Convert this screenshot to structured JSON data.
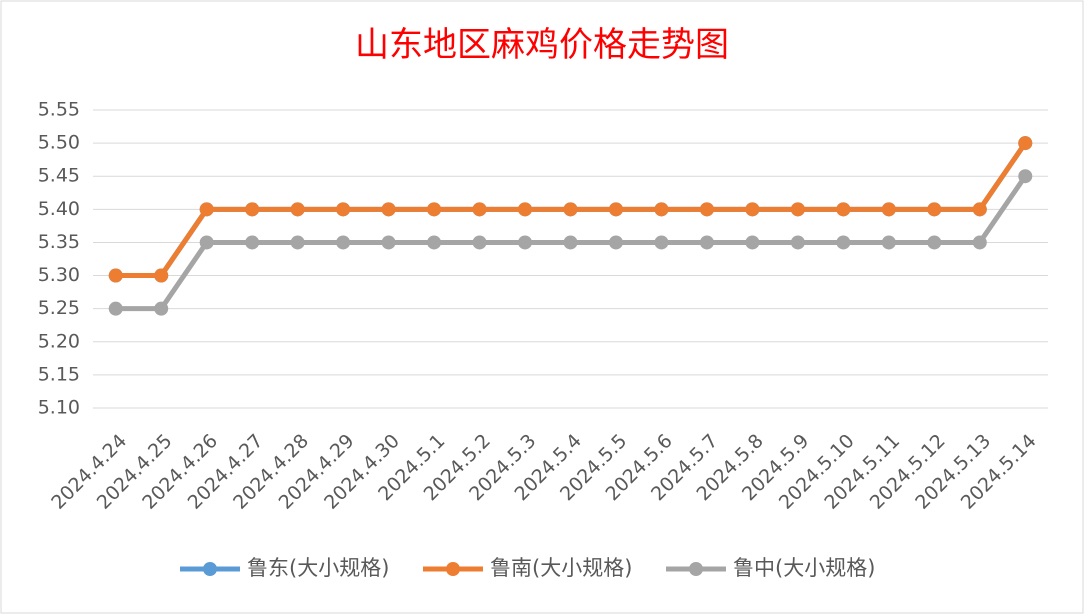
{
  "chart_data": {
    "type": "line",
    "title": "山东地区麻鸡价格走势图",
    "categories": [
      "2024.4.24",
      "2024.4.25",
      "2024.4.26",
      "2024.4.27",
      "2024.4.28",
      "2024.4.29",
      "2024.4.30",
      "2024.5.1",
      "2024.5.2",
      "2024.5.3",
      "2024.5.4",
      "2024.5.5",
      "2024.5.6",
      "2024.5.7",
      "2024.5.8",
      "2024.5.9",
      "2024.5.10",
      "2024.5.11",
      "2024.5.12",
      "2024.5.13",
      "2024.5.14"
    ],
    "series": [
      {
        "name": "鲁东(大小规格)",
        "color": "#5b9bd5",
        "values": [
          5.3,
          5.3,
          5.4,
          5.4,
          5.4,
          5.4,
          5.4,
          5.4,
          5.4,
          5.4,
          5.4,
          5.4,
          5.4,
          5.4,
          5.4,
          5.4,
          5.4,
          5.4,
          5.4,
          5.4,
          5.5
        ]
      },
      {
        "name": "鲁南(大小规格)",
        "color": "#ed7d31",
        "values": [
          5.3,
          5.3,
          5.4,
          5.4,
          5.4,
          5.4,
          5.4,
          5.4,
          5.4,
          5.4,
          5.4,
          5.4,
          5.4,
          5.4,
          5.4,
          5.4,
          5.4,
          5.4,
          5.4,
          5.4,
          5.5
        ]
      },
      {
        "name": "鲁中(大小规格)",
        "color": "#a5a5a5",
        "values": [
          5.25,
          5.25,
          5.35,
          5.35,
          5.35,
          5.35,
          5.35,
          5.35,
          5.35,
          5.35,
          5.35,
          5.35,
          5.35,
          5.35,
          5.35,
          5.35,
          5.35,
          5.35,
          5.35,
          5.35,
          5.45
        ]
      }
    ],
    "ylim": [
      5.1,
      5.55
    ],
    "yticks": [
      {
        "value": 5.1,
        "label": "5.10"
      },
      5.15,
      {
        "value": 5.2,
        "label": "5.20"
      },
      5.25,
      {
        "value": 5.3,
        "label": "5.30"
      },
      5.35,
      {
        "value": 5.4,
        "label": "5.40"
      },
      5.45,
      {
        "value": 5.5,
        "label": "5.50"
      },
      5.55
    ],
    "grid": true
  }
}
